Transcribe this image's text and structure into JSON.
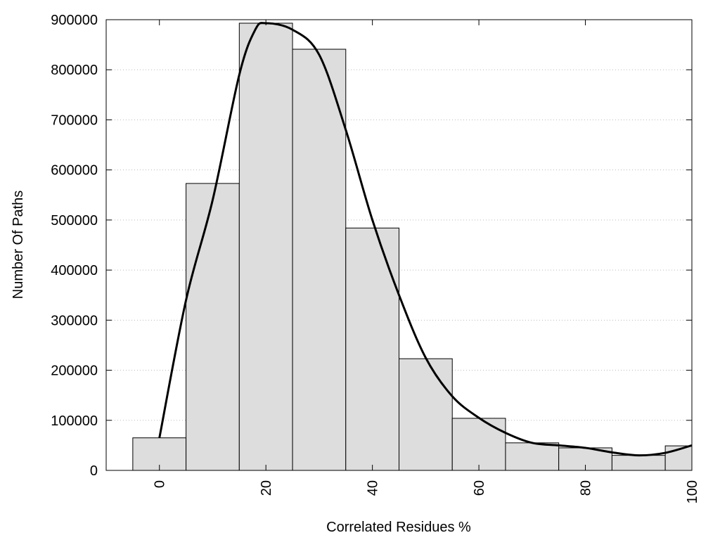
{
  "chart_data": {
    "type": "bar",
    "title": "",
    "xlabel": "Correlated Residues %",
    "ylabel": "Number Of Paths",
    "xlim": [
      -10,
      100
    ],
    "ylim": [
      0,
      900000
    ],
    "grid": "horizontal-dotted",
    "x_ticks": [
      0,
      20,
      40,
      60,
      80,
      100
    ],
    "y_ticks": [
      0,
      100000,
      200000,
      300000,
      400000,
      500000,
      600000,
      700000,
      800000,
      900000
    ],
    "bar_width": 10,
    "bar_color": "#dddddd",
    "categories": [
      0,
      10,
      20,
      30,
      40,
      50,
      60,
      70,
      80,
      90,
      100
    ],
    "values": [
      65000,
      573000,
      893000,
      841000,
      484000,
      223000,
      104000,
      55000,
      45000,
      30000,
      49000
    ],
    "curve": {
      "x": [
        0,
        5,
        10,
        15,
        18,
        20,
        25,
        30,
        35,
        40,
        45,
        50,
        55,
        60,
        65,
        70,
        75,
        80,
        85,
        90,
        95,
        100
      ],
      "y": [
        65000,
        340000,
        540000,
        790000,
        880000,
        893000,
        880000,
        830000,
        680000,
        500000,
        350000,
        225000,
        148000,
        105000,
        75000,
        55000,
        50000,
        45000,
        36000,
        30000,
        35000,
        50000
      ]
    }
  }
}
